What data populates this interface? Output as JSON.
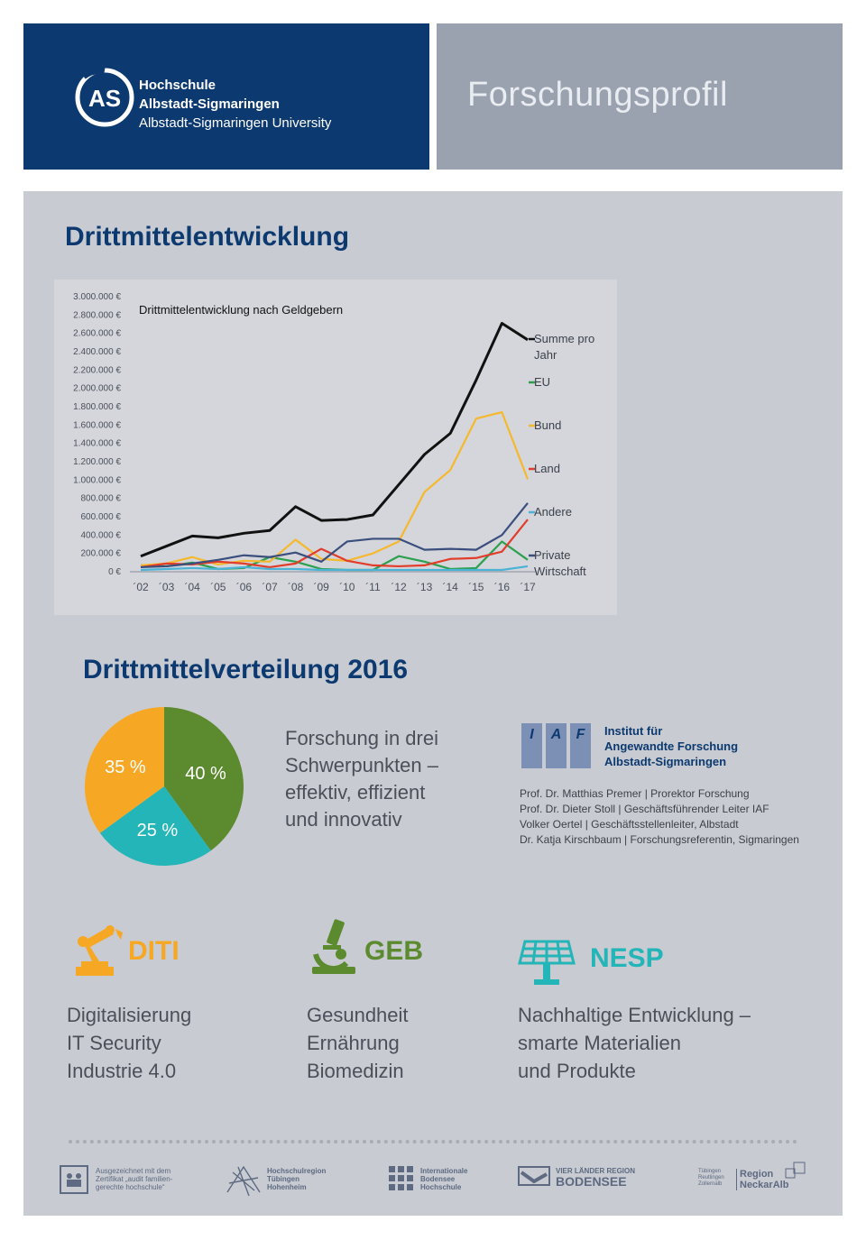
{
  "header": {
    "university_line1": "Hochschule",
    "university_line2": "Albstadt-Sigmaringen",
    "university_line3": "Albstadt-Sigmaringen University",
    "logo_text": "AS",
    "page_title": "Forschungsprofil",
    "color_left": "#0c3a70",
    "color_right": "#9aa2b0"
  },
  "section1": {
    "title": "Drittmittelentwicklung"
  },
  "chart_data": {
    "type": "line",
    "title": "Drittmittelentwicklung nach Geldgebern",
    "categories": [
      "´02",
      "´03",
      "´04",
      "´05",
      "´06",
      "´07",
      "´08",
      "´09",
      "´10",
      "´11",
      "´12",
      "´13",
      "´14",
      "´15",
      "´16",
      "´17"
    ],
    "yticks": [
      "0 €",
      "200.000 €",
      "400.000 €",
      "600.000 €",
      "800.000 €",
      "1.000.000 €",
      "1.200.000 €",
      "1.400.000 €",
      "1.600.000 €",
      "1.800.000 €",
      "2.000.000 €",
      "2.200.000 €",
      "2.400.000 €",
      "2.600.000 €",
      "2.800.000 €",
      "3.000.000 €"
    ],
    "ylim": [
      0,
      3000000
    ],
    "series": [
      {
        "name": "Summe pro Jahr",
        "color": "#111111",
        "values": [
          160000,
          270000,
          380000,
          360000,
          410000,
          440000,
          700000,
          550000,
          560000,
          610000,
          940000,
          1270000,
          1500000,
          2080000,
          2700000,
          2520000
        ]
      },
      {
        "name": "EU",
        "color": "#2ca04f",
        "values": [
          60000,
          50000,
          90000,
          20000,
          30000,
          150000,
          100000,
          20000,
          10000,
          10000,
          160000,
          100000,
          20000,
          30000,
          320000,
          120000
        ]
      },
      {
        "name": "Bund",
        "color": "#f6b82c",
        "values": [
          60000,
          80000,
          150000,
          70000,
          110000,
          100000,
          340000,
          130000,
          110000,
          190000,
          320000,
          860000,
          1100000,
          1660000,
          1730000,
          1000000
        ]
      },
      {
        "name": "Land",
        "color": "#e23c2b",
        "values": [
          40000,
          80000,
          70000,
          100000,
          80000,
          40000,
          80000,
          240000,
          110000,
          60000,
          50000,
          60000,
          130000,
          140000,
          210000,
          560000
        ]
      },
      {
        "name": "Andere",
        "color": "#4bb3d6",
        "values": [
          10000,
          20000,
          30000,
          20000,
          40000,
          20000,
          20000,
          10000,
          10000,
          10000,
          10000,
          10000,
          10000,
          10000,
          10000,
          50000
        ]
      },
      {
        "name": "Private Wirtschaft",
        "color": "#3b4f7e",
        "values": [
          40000,
          50000,
          80000,
          120000,
          170000,
          150000,
          200000,
          100000,
          320000,
          350000,
          350000,
          230000,
          240000,
          230000,
          390000,
          740000
        ]
      }
    ],
    "legend_position": "right",
    "grid": false
  },
  "section2": {
    "title": "Drittmittelverteilung 2016"
  },
  "pie_data": {
    "type": "pie",
    "slices": [
      {
        "label": "40 %",
        "value": 40,
        "color": "#5c8a2e"
      },
      {
        "label": "25 %",
        "value": 25,
        "color": "#23b5b7"
      },
      {
        "label": "35 %",
        "value": 35,
        "color": "#f6a824"
      }
    ]
  },
  "focus_text": [
    "Forschung in drei",
    "Schwerpunkten –",
    "effektiv, effizient",
    "und innovativ"
  ],
  "iaf": {
    "letters": [
      "I",
      "A",
      "F"
    ],
    "name_lines": [
      "Institut für",
      "Angewandte Forschung",
      "Albstadt-Sigmaringen"
    ],
    "people": [
      "Prof. Dr. Matthias Premer  |  Prorektor Forschung",
      "Prof. Dr. Dieter Stoll  |  Geschäftsführender Leiter IAF",
      "Volker Oertel  |  Geschäftsstellenleiter, Albstadt",
      "Dr. Katja Kirschbaum  |  Forschungsreferentin, Sigmaringen"
    ]
  },
  "areas": [
    {
      "abbr": "DITI",
      "color": "#f6a824",
      "icon": "robot-arm-icon",
      "lines": [
        "Digitalisierung",
        "IT Security",
        "Industrie 4.0"
      ]
    },
    {
      "abbr": "GEB",
      "color": "#5c8a2e",
      "icon": "microscope-icon",
      "lines": [
        "Gesundheit",
        "Ernährung",
        "Biomedizin"
      ]
    },
    {
      "abbr": "NESP",
      "color": "#23b5b7",
      "icon": "solar-panel-icon",
      "lines": [
        "Nachhaltige Entwicklung –",
        "smarte Materialien",
        "und Produkte"
      ]
    }
  ],
  "partners": [
    {
      "icon": "family-certificate-icon",
      "lines": [
        "Ausgezeichnet mit dem",
        "Zertifikat „audit familien-",
        "gerechte hochschule“"
      ]
    },
    {
      "icon": "network-icon",
      "lines": [
        "Hochschulregion",
        "Tübingen",
        "Hohenheim"
      ]
    },
    {
      "icon": "grid-icon",
      "lines": [
        "Internationale",
        "Bodensee",
        "Hochschule"
      ]
    },
    {
      "icon": "lake-icon",
      "lines": [
        "VIER LÄNDER REGION",
        "BODENSEE"
      ]
    },
    {
      "icon": "region-boxes-icon",
      "lines": [
        "Tübingen",
        "Reutlingen",
        "Zollernalb",
        "Region",
        "NeckarAlb"
      ]
    }
  ]
}
